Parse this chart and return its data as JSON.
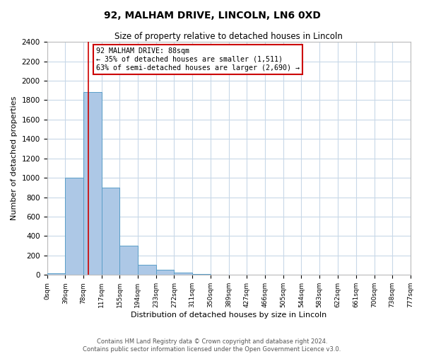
{
  "title1": "92, MALHAM DRIVE, LINCOLN, LN6 0XD",
  "title2": "Size of property relative to detached houses in Lincoln",
  "xlabel": "Distribution of detached houses by size in Lincoln",
  "ylabel": "Number of detached properties",
  "bin_edges": [
    0,
    39,
    78,
    117,
    155,
    194,
    233,
    272,
    311,
    350,
    389,
    427,
    466,
    505,
    544,
    583,
    622,
    661,
    700,
    738,
    777
  ],
  "bar_heights": [
    15,
    1005,
    1880,
    900,
    305,
    105,
    50,
    25,
    10,
    5,
    3,
    2,
    1,
    1,
    0,
    0,
    0,
    0,
    0,
    0
  ],
  "bar_color": "#adc8e6",
  "bar_edge_color": "#5a9ec8",
  "grid_color": "#c8d8e8",
  "property_size": 88,
  "property_line_color": "#cc0000",
  "annotation_text": "92 MALHAM DRIVE: 88sqm\n← 35% of detached houses are smaller (1,511)\n63% of semi-detached houses are larger (2,690) →",
  "annotation_box_color": "#ffffff",
  "annotation_box_edge": "#cc0000",
  "ylim": [
    0,
    2400
  ],
  "yticks": [
    0,
    200,
    400,
    600,
    800,
    1000,
    1200,
    1400,
    1600,
    1800,
    2000,
    2200,
    2400
  ],
  "tick_labels": [
    "0sqm",
    "39sqm",
    "78sqm",
    "117sqm",
    "155sqm",
    "194sqm",
    "233sqm",
    "272sqm",
    "311sqm",
    "350sqm",
    "389sqm",
    "427sqm",
    "466sqm",
    "505sqm",
    "544sqm",
    "583sqm",
    "622sqm",
    "661sqm",
    "700sqm",
    "738sqm",
    "777sqm"
  ],
  "footer1": "Contains HM Land Registry data © Crown copyright and database right 2024.",
  "footer2": "Contains public sector information licensed under the Open Government Licence v3.0.",
  "bg_color": "#ffffff"
}
